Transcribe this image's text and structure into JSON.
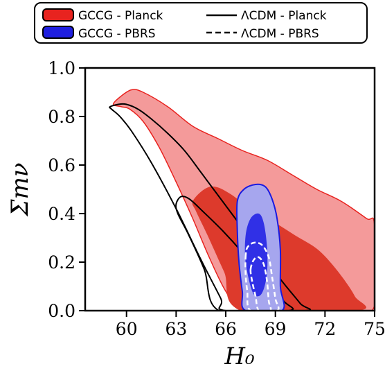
{
  "chart_data": {
    "type": "contour",
    "xlabel": "H₀",
    "ylabel": "Σmν",
    "xlim": [
      57.5,
      75
    ],
    "ylim": [
      0,
      1
    ],
    "x_ticks": [
      60,
      63,
      66,
      69,
      72,
      75
    ],
    "y_ticks": [
      0.0,
      0.2,
      0.4,
      0.6,
      0.8,
      1.0
    ],
    "x_tick_labels": [
      "60",
      "63",
      "66",
      "69",
      "72",
      "75"
    ],
    "y_tick_labels": [
      "0.0",
      "0.2",
      "0.4",
      "0.6",
      "0.8",
      "1.0"
    ],
    "legend": {
      "placement": "top",
      "entries": [
        {
          "label": "GCCG - Planck",
          "style": "filled",
          "color": "#e8231f"
        },
        {
          "label": "GCCG - PBRS",
          "style": "filled",
          "color": "#1f1fe0"
        },
        {
          "label": "ΛCDM - Planck",
          "style": "solid-line",
          "color": "#000000"
        },
        {
          "label": "ΛCDM - PBRS",
          "style": "dashed-line",
          "color": "#000000"
        }
      ]
    },
    "series": [
      {
        "name": "GCCG - Planck",
        "style": "filled",
        "colors": {
          "outer": "#f49a9a",
          "inner": "#dd3a2c",
          "edge": "#e8231f"
        },
        "outer": [
          [
            59.2,
            0.85
          ],
          [
            59.6,
            0.88
          ],
          [
            60.3,
            0.91
          ],
          [
            61.0,
            0.9
          ],
          [
            62.5,
            0.84
          ],
          [
            64.0,
            0.76
          ],
          [
            65.5,
            0.71
          ],
          [
            67.0,
            0.66
          ],
          [
            68.5,
            0.62
          ],
          [
            70.0,
            0.56
          ],
          [
            71.5,
            0.5
          ],
          [
            73.0,
            0.45
          ],
          [
            74.5,
            0.38
          ],
          [
            75.0,
            0.35
          ],
          [
            75.0,
            0.02
          ],
          [
            73.2,
            0.0
          ],
          [
            70.0,
            0.0
          ],
          [
            67.0,
            0.0
          ],
          [
            66.0,
            0.08
          ],
          [
            65.0,
            0.22
          ],
          [
            64.0,
            0.38
          ],
          [
            63.0,
            0.53
          ],
          [
            62.0,
            0.67
          ],
          [
            61.0,
            0.78
          ],
          [
            60.2,
            0.83
          ],
          [
            59.7,
            0.84
          ],
          [
            59.2,
            0.85
          ]
        ],
        "inner": [
          [
            64.0,
            0.45
          ],
          [
            64.7,
            0.5
          ],
          [
            65.4,
            0.51
          ],
          [
            66.3,
            0.48
          ],
          [
            67.5,
            0.42
          ],
          [
            68.8,
            0.37
          ],
          [
            70.2,
            0.31
          ],
          [
            71.6,
            0.25
          ],
          [
            72.8,
            0.16
          ],
          [
            73.8,
            0.06
          ],
          [
            74.0,
            0.0
          ],
          [
            67.0,
            0.0
          ],
          [
            65.9,
            0.16
          ],
          [
            64.9,
            0.31
          ],
          [
            64.2,
            0.41
          ],
          [
            64.0,
            0.45
          ]
        ]
      },
      {
        "name": "GCCG - PBRS",
        "style": "filled",
        "colors": {
          "outer": "#a6a6ee",
          "inner": "#3030e6",
          "edge": "#1a1ae0"
        },
        "outer": [
          [
            66.7,
            0.45
          ],
          [
            67.1,
            0.5
          ],
          [
            67.8,
            0.52
          ],
          [
            68.4,
            0.51
          ],
          [
            68.8,
            0.46
          ],
          [
            69.1,
            0.38
          ],
          [
            69.3,
            0.25
          ],
          [
            69.3,
            0.1
          ],
          [
            69.4,
            0.0
          ],
          [
            67.2,
            0.0
          ],
          [
            67.0,
            0.08
          ],
          [
            66.8,
            0.2
          ],
          [
            66.7,
            0.33
          ],
          [
            66.7,
            0.45
          ]
        ],
        "inner": [
          [
            67.2,
            0.31
          ],
          [
            67.5,
            0.38
          ],
          [
            68.0,
            0.4
          ],
          [
            68.3,
            0.36
          ],
          [
            68.5,
            0.26
          ],
          [
            68.5,
            0.16
          ],
          [
            68.3,
            0.09
          ],
          [
            68.0,
            0.06
          ],
          [
            67.6,
            0.08
          ],
          [
            67.2,
            0.2
          ],
          [
            67.2,
            0.31
          ]
        ]
      },
      {
        "name": "ΛCDM - Planck",
        "style": "solid-line",
        "color": "#000000",
        "outer": [
          [
            59.0,
            0.84
          ],
          [
            59.5,
            0.85
          ],
          [
            60.0,
            0.85
          ],
          [
            60.7,
            0.83
          ],
          [
            61.5,
            0.79
          ],
          [
            62.5,
            0.73
          ],
          [
            63.5,
            0.66
          ],
          [
            64.5,
            0.57
          ],
          [
            65.7,
            0.46
          ],
          [
            66.8,
            0.36
          ],
          [
            68.0,
            0.25
          ],
          [
            69.3,
            0.13
          ],
          [
            70.5,
            0.03
          ],
          [
            70.8,
            0.0
          ],
          [
            66.0,
            0.0
          ],
          [
            65.7,
            0.05
          ],
          [
            64.5,
            0.21
          ],
          [
            63.0,
            0.42
          ],
          [
            61.5,
            0.61
          ],
          [
            60.3,
            0.74
          ],
          [
            59.6,
            0.8
          ],
          [
            59.1,
            0.83
          ],
          [
            59.0,
            0.84
          ]
        ],
        "inner": [
          [
            63.0,
            0.44
          ],
          [
            63.3,
            0.47
          ],
          [
            63.8,
            0.46
          ],
          [
            64.6,
            0.41
          ],
          [
            65.8,
            0.33
          ],
          [
            67.0,
            0.24
          ],
          [
            68.2,
            0.14
          ],
          [
            69.5,
            0.04
          ],
          [
            69.8,
            0.0
          ],
          [
            65.6,
            0.0
          ],
          [
            64.7,
            0.17
          ],
          [
            63.7,
            0.32
          ],
          [
            63.1,
            0.4
          ],
          [
            63.0,
            0.44
          ]
        ]
      },
      {
        "name": "ΛCDM - PBRS",
        "style": "dashed-line",
        "color": "#ffffff",
        "outer": [
          [
            67.2,
            0.22
          ],
          [
            67.3,
            0.26
          ],
          [
            67.7,
            0.28
          ],
          [
            68.2,
            0.27
          ],
          [
            68.6,
            0.22
          ],
          [
            68.8,
            0.14
          ],
          [
            69.0,
            0.05
          ],
          [
            69.1,
            0.0
          ],
          [
            67.5,
            0.0
          ],
          [
            67.3,
            0.08
          ],
          [
            67.2,
            0.15
          ],
          [
            67.2,
            0.22
          ]
        ],
        "inner": [
          [
            67.5,
            0.17
          ],
          [
            67.7,
            0.21
          ],
          [
            68.0,
            0.22
          ],
          [
            68.3,
            0.19
          ],
          [
            68.5,
            0.12
          ],
          [
            68.6,
            0.04
          ],
          [
            68.7,
            0.0
          ],
          [
            68.0,
            0.0
          ],
          [
            67.8,
            0.06
          ],
          [
            67.6,
            0.12
          ],
          [
            67.5,
            0.17
          ]
        ]
      }
    ]
  }
}
